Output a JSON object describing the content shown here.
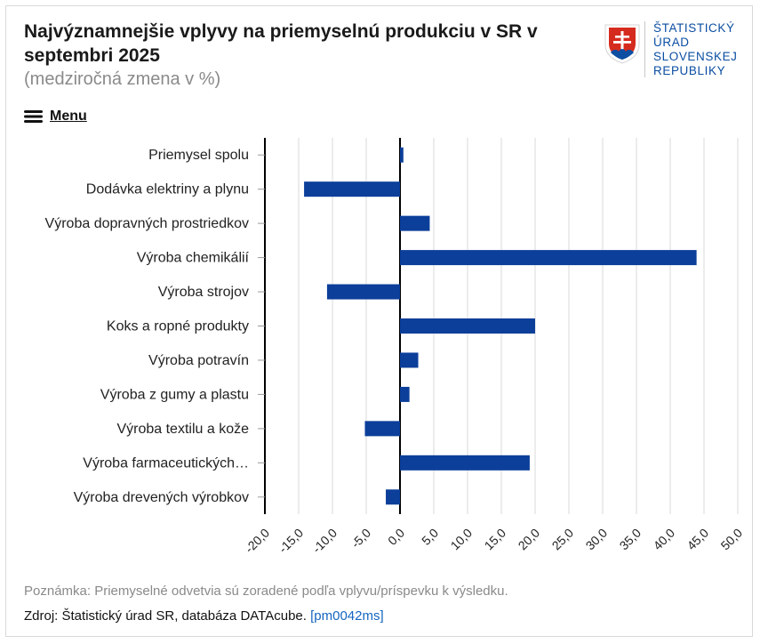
{
  "header": {
    "title": "Najvýznamnejšie vplyvy na priemyselnú produkciu v SR v septembri 2025",
    "subtitle": "(medziročná zmena v %)"
  },
  "logo": {
    "lines": [
      "ŠTATISTICKÝ",
      "ÚRAD",
      "SLOVENSKEJ",
      "REPUBLIKY"
    ],
    "icon": "slovak-coat-of-arms-icon"
  },
  "menu": {
    "label": "Menu",
    "icon": "hamburger-icon"
  },
  "colors": {
    "bar": "#0c3f9a",
    "grid": "#d8d8d8",
    "axis": "#000000"
  },
  "chart_data": {
    "type": "bar",
    "orientation": "horizontal",
    "categories": [
      "Priemysel spolu",
      "Dodávka elektriny a plynu",
      "Výroba dopravných prostriedkov",
      "Výroba chemikálií",
      "Výroba strojov",
      "Koks a ropné produkty",
      "Výroba potravín",
      "Výroba z gumy a plastu",
      "Výroba textilu a kože",
      "Výroba farmaceutických…",
      "Výroba drevených výrobkov"
    ],
    "values": [
      0.5,
      -14.2,
      4.4,
      43.9,
      -10.8,
      20.0,
      2.7,
      1.4,
      -5.2,
      19.2,
      -2.1
    ],
    "xlim": [
      -20,
      50
    ],
    "ticks": [
      "-20,0",
      "-15,0",
      "-10,0",
      "-5,0",
      "0,0",
      "5,0",
      "10,0",
      "15,0",
      "20,0",
      "25,0",
      "30,0",
      "35,0",
      "40,0",
      "45,0",
      "50,0"
    ],
    "grid": true
  },
  "footer": {
    "note": "Poznámka: Priemyselné odvetvia sú zoradené podľa vplyvu/príspevku k výsledku.",
    "source_prefix": "Zdroj: Štatistický úrad SR, databáza DATAcube. ",
    "source_link": "[pm0042ms]"
  }
}
